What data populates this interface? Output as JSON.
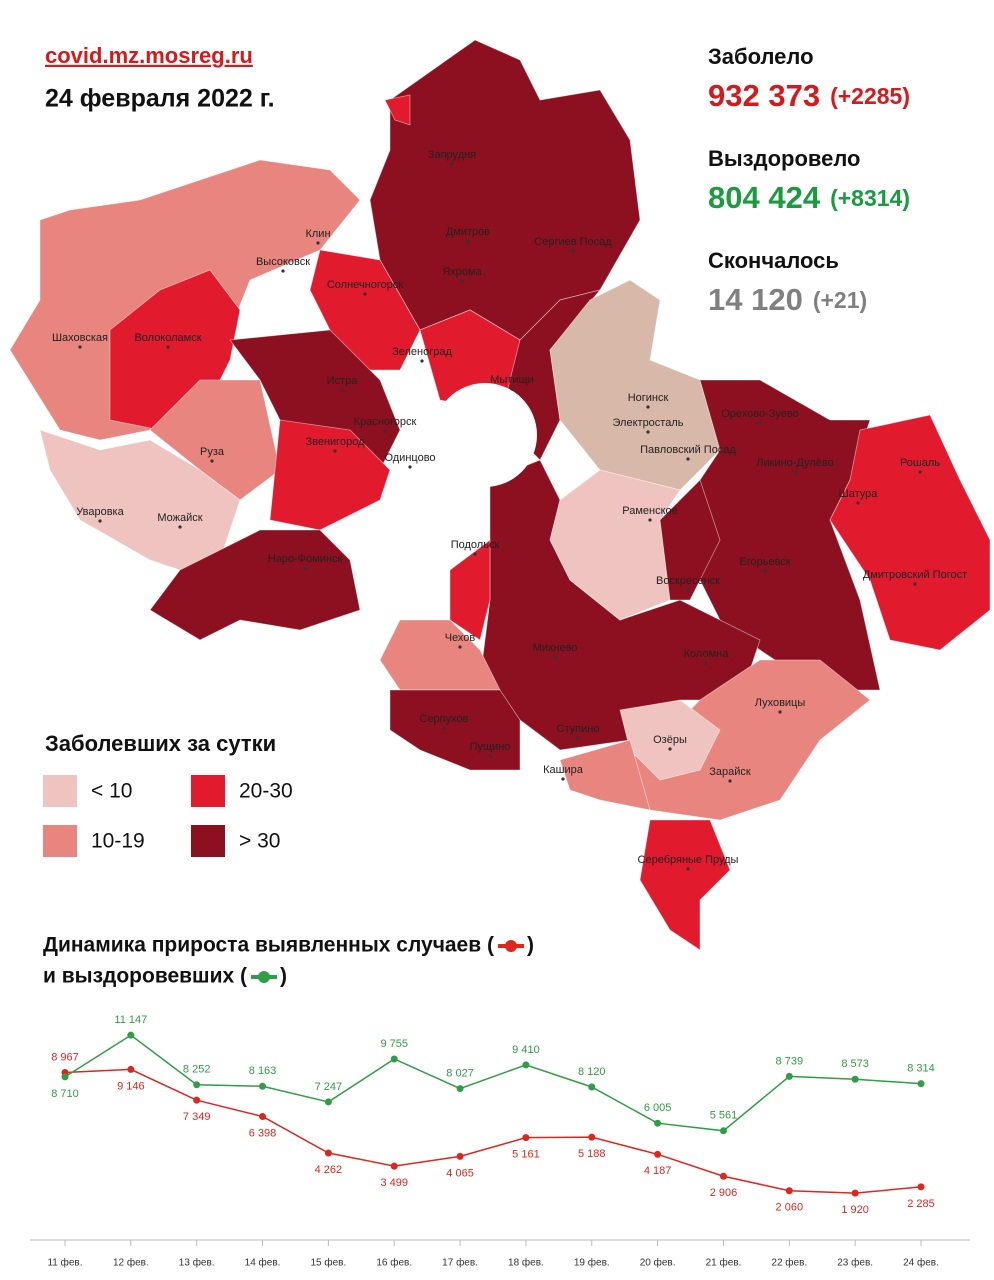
{
  "header": {
    "site": "covid.mz.mosreg.ru",
    "date": "24 февраля 2022 г."
  },
  "stats": [
    {
      "label": "Заболело",
      "value": "932 373",
      "delta": "(+2285)",
      "color": "#d7191c"
    },
    {
      "label": "Выздоровело",
      "value": "804 424",
      "delta": "(+8314)",
      "color": "#1a9c3e"
    },
    {
      "label": "Скончалось",
      "value": "14 120",
      "delta": "(+21)",
      "color": "#808080"
    }
  ],
  "legend": {
    "title": "Заболевших за сутки",
    "items": [
      {
        "label": "< 10",
        "color": "#efc4c0"
      },
      {
        "label": "20-30",
        "color": "#e11a2e"
      },
      {
        "label": "10-19",
        "color": "#e8857e"
      },
      {
        "label": "> 30",
        "color": "#8c1020"
      }
    ]
  },
  "map": {
    "labels": [
      "Запрудня",
      "Дмитров",
      "Сергиев Посад",
      "Яхрома",
      "Клин",
      "Высоковск",
      "Солнечногорск",
      "Шаховская",
      "Волоколамск",
      "Зеленоград",
      "Истра",
      "Мытищи",
      "Красногорск",
      "Звенигород",
      "Одинцово",
      "Руза",
      "Уваровка",
      "Можайск",
      "Наро-Фоминск",
      "Ногинск",
      "Электросталь",
      "Павловский Посад",
      "Орехово-Зуево",
      "Ликино-Дулёво",
      "Рошаль",
      "Шатура",
      "Раменское",
      "Дмитровский Погост",
      "Егорьевск",
      "Воскресенск",
      "Подольск",
      "Чехов",
      "Михнево",
      "Коломна",
      "Луховицы",
      "Серпухов",
      "Пущино",
      "Ступино",
      "Озёры",
      "Кашира",
      "Зарайск",
      "Серебряные Пруды"
    ]
  },
  "chart_data": {
    "type": "line",
    "title_lines": [
      [
        "Динамика прироста выявленных случаев (",
        ")"
      ],
      [
        "и выздоровевших (",
        ")"
      ]
    ],
    "categories": [
      "11 фев.",
      "12 фев.",
      "13 фев.",
      "14 фев.",
      "15 фев.",
      "16 фев.",
      "17 фев.",
      "18 фев.",
      "19 фев.",
      "20 фев.",
      "21 фев.",
      "22 фев.",
      "23 фев.",
      "24 фев."
    ],
    "series": [
      {
        "color": "#e0261c",
        "values": [
          8967,
          9146,
          7349,
          6398,
          4262,
          3499,
          4065,
          5161,
          5188,
          4187,
          2906,
          2060,
          1920,
          2285
        ],
        "value_labels": [
          "8 967",
          "9 146",
          "7 349",
          "6 398",
          "4 262",
          "3 499",
          "4 065",
          "5 161",
          "5 188",
          "4 187",
          "2 906",
          "2 060",
          "1 920",
          "2 285"
        ]
      },
      {
        "color": "#2f9e44",
        "values": [
          8710,
          11147,
          8252,
          8163,
          7247,
          9755,
          8027,
          9410,
          8120,
          6005,
          5561,
          8739,
          8573,
          8314
        ],
        "value_labels": [
          "8 710",
          "11 147",
          "8 252",
          "8 163",
          "7 247",
          "9 755",
          "8 027",
          "9 410",
          "8 120",
          "6 005",
          "5 561",
          "8 739",
          "8 573",
          "8 314"
        ]
      }
    ]
  }
}
